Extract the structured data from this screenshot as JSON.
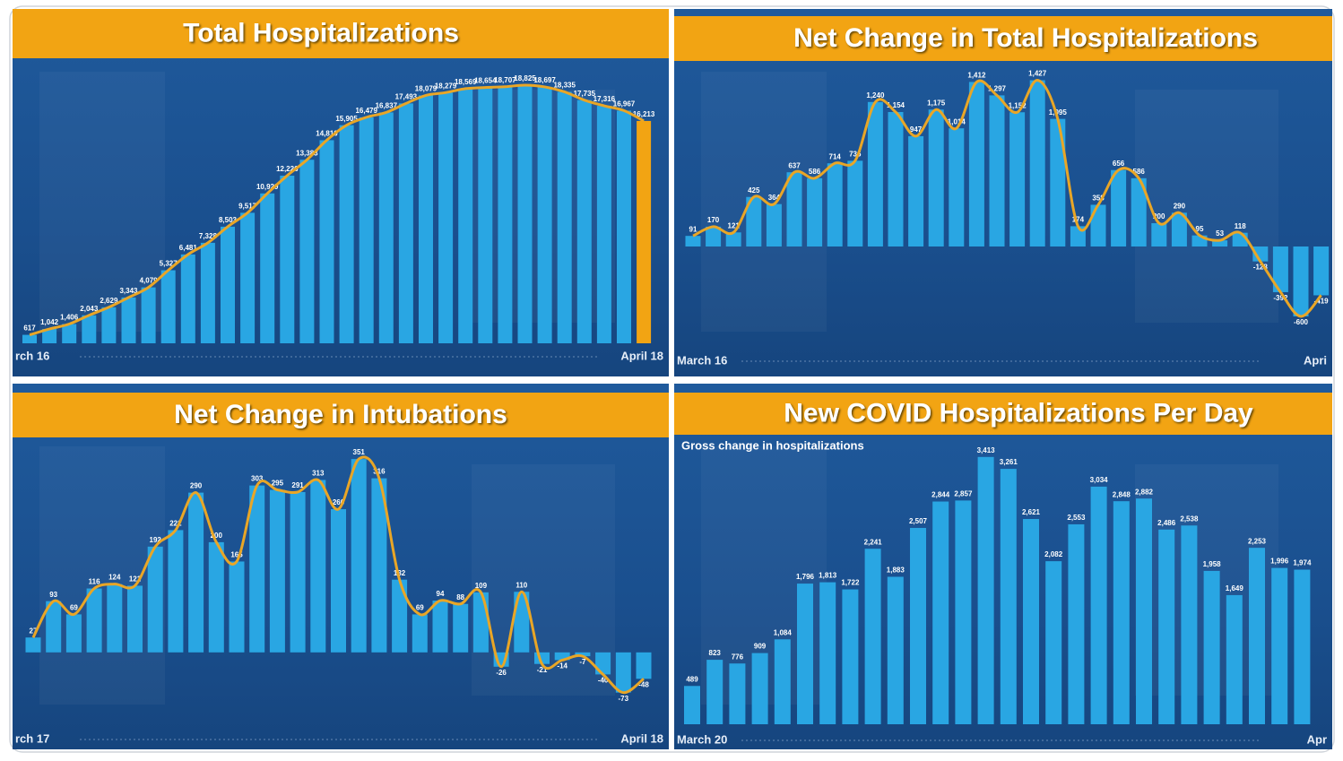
{
  "chart_data": [
    {
      "type": "bar",
      "title": "Total Hospitalizations",
      "categories": [
        "rch 16",
        null,
        null,
        null,
        null,
        null,
        null,
        null,
        null,
        null,
        null,
        null,
        null,
        null,
        null,
        null,
        null,
        null,
        null,
        null,
        null,
        null,
        null,
        null,
        null,
        null,
        null,
        null,
        null,
        null,
        null,
        "April 18"
      ],
      "values": [
        617,
        1042,
        1406,
        2043,
        2629,
        3343,
        4079,
        5327,
        6481,
        7328,
        8503,
        9517,
        10929,
        12226,
        13383,
        14810,
        15905,
        16479,
        16837,
        17493,
        18079,
        18279,
        18569,
        18654,
        18707,
        18825,
        18697,
        18335,
        17735,
        17316,
        16967,
        16213
      ],
      "value_labels": [
        "617",
        "1,042",
        "1,406",
        "2,043",
        "2,629",
        "3,343",
        "4,079",
        "5,327",
        "6,481",
        "7,328",
        "8,503",
        "9,517",
        "10,929",
        "12,226",
        "13,383",
        "14,810",
        "15,905",
        "16,479",
        "16,837",
        "17,493",
        "18,079",
        "18,279",
        "18,569",
        "18,654",
        "18,707",
        "18,825",
        "18,697",
        "18,335",
        "17,735",
        "17,316",
        "16,967",
        "16,213"
      ],
      "color": "#29a6e3",
      "highlight_last": true,
      "highlight_color": "#f2a413",
      "line_color": "#e9a626",
      "ylim": [
        0,
        20000
      ]
    },
    {
      "type": "bar",
      "title": "Net Change in Total Hospitalizations",
      "categories": [
        "March 16",
        null,
        null,
        null,
        null,
        null,
        null,
        null,
        null,
        null,
        null,
        null,
        null,
        null,
        null,
        null,
        null,
        null,
        null,
        null,
        null,
        null,
        null,
        null,
        null,
        null,
        null,
        null,
        null,
        null,
        null,
        "Apri"
      ],
      "values": [
        91,
        170,
        121,
        425,
        364,
        637,
        586,
        714,
        736,
        1240,
        1154,
        947,
        1175,
        1014,
        1412,
        1297,
        1152,
        1427,
        1095,
        174,
        358,
        656,
        586,
        200,
        290,
        95,
        53,
        118,
        -128,
        -392,
        -600,
        -419
      ],
      "value_labels": [
        "91",
        "170",
        "121",
        "425",
        "364",
        "637",
        "586",
        "714",
        "736",
        "1,240",
        "1,154",
        "947",
        "1,175",
        "1,014",
        "1,412",
        "1,297",
        "1,152",
        "1,427",
        "1,095",
        "174",
        "358",
        "656",
        "586",
        "200",
        "290",
        "95",
        "53",
        "118",
        "-128",
        "-392",
        "-600",
        "-419"
      ],
      "color": "#29a6e3",
      "highlight_last": false,
      "line_color": "#e9a626",
      "ylim": [
        -900,
        1600
      ]
    },
    {
      "type": "bar",
      "title": "Net Change in Intubations",
      "categories": [
        "rch 17",
        null,
        null,
        null,
        null,
        null,
        null,
        null,
        null,
        null,
        null,
        null,
        null,
        null,
        null,
        null,
        null,
        null,
        null,
        null,
        null,
        null,
        null,
        null,
        null,
        null,
        null,
        null,
        null,
        null,
        "April 18"
      ],
      "values": [
        27,
        93,
        69,
        116,
        124,
        121,
        192,
        222,
        290,
        200,
        165,
        303,
        295,
        291,
        313,
        260,
        351,
        316,
        132,
        69,
        94,
        88,
        109,
        -26,
        110,
        -21,
        -14,
        -7,
        -40,
        -73,
        -48
      ],
      "color": "#29a6e3",
      "highlight_last": false,
      "line_color": "#e9a626",
      "ylim": [
        -150,
        400
      ]
    },
    {
      "type": "bar",
      "title": "New COVID Hospitalizations Per Day",
      "subtitle": "Gross change in hospitalizations",
      "categories": [
        "March 20",
        null,
        null,
        null,
        null,
        null,
        null,
        null,
        null,
        null,
        null,
        null,
        null,
        null,
        null,
        null,
        null,
        null,
        null,
        null,
        null,
        null,
        null,
        null,
        null,
        null,
        null,
        "Apr"
      ],
      "values": [
        489,
        823,
        776,
        909,
        1084,
        1796,
        1813,
        1722,
        2241,
        1883,
        2507,
        2844,
        2857,
        3413,
        3261,
        2621,
        2082,
        2553,
        3034,
        2848,
        2882,
        2486,
        2538,
        1958,
        1649,
        2253,
        1996,
        1974
      ],
      "value_labels": [
        "489",
        "823",
        "776",
        "909",
        "1,084",
        "1,796",
        "1,813",
        "1,722",
        "2,241",
        "1,883",
        "2,507",
        "2,844",
        "2,857",
        "3,413",
        "3,261",
        "2,621",
        "2,082",
        "2,553",
        "3,034",
        "2,848",
        "2,882",
        "2,486",
        "2,538",
        "1,958",
        "1,649",
        "2,253",
        "1,996",
        "1,974"
      ],
      "color": "#29a6e3",
      "highlight_last": false,
      "ylim": [
        0,
        3800
      ]
    }
  ]
}
